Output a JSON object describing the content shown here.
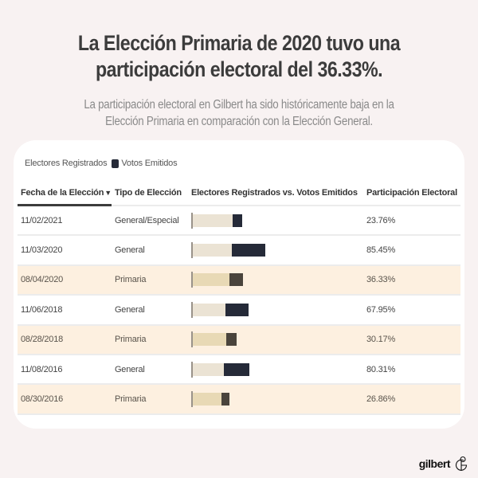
{
  "header": {
    "title_line1": "La Elección Primaria de 2020 tuvo una",
    "title_line2": "participación electoral del 36.33%.",
    "subtitle_line1": "La participación electoral en Gilbert ha sido históricamente baja en la",
    "subtitle_line2": "Elección Primaria en comparación con la Elección General."
  },
  "legend": {
    "registered_label": "Electores Registrados",
    "votes_label": "Votos Emitidos"
  },
  "table": {
    "columns": [
      "Fecha de la Elección",
      "Tipo de Elección",
      "Electores Registrados vs. Votos Emitidos",
      "Participación Electoral"
    ],
    "sort_indicator": "▼"
  },
  "colors": {
    "registered_general": "#ebe3d4",
    "votes_general": "#252a38",
    "registered_primary": "#e8d9b5",
    "votes_primary": "#4a443c",
    "primary_row_bg": "#fdf0e0"
  },
  "chart_data": {
    "type": "table",
    "title": "La Elección Primaria de 2020 tuvo una participación electoral del 36.33%.",
    "legend": [
      "Electores Registrados",
      "Votos Emitidos"
    ],
    "legend_position": "top-left",
    "rows": [
      {
        "date": "11/02/2021",
        "type": "General/Especial",
        "registered_rel": 1.0,
        "turnout_pct": 23.76,
        "turnout_label": "23.76%",
        "highlight": false
      },
      {
        "date": "11/03/2020",
        "type": "General",
        "registered_rel": 0.98,
        "turnout_pct": 85.45,
        "turnout_label": "85.45%",
        "highlight": false
      },
      {
        "date": "08/04/2020",
        "type": "Primaria",
        "registered_rel": 0.92,
        "turnout_pct": 36.33,
        "turnout_label": "36.33%",
        "highlight": true
      },
      {
        "date": "11/06/2018",
        "type": "General",
        "registered_rel": 0.83,
        "turnout_pct": 67.95,
        "turnout_label": "67.95%",
        "highlight": false
      },
      {
        "date": "08/28/2018",
        "type": "Primaria",
        "registered_rel": 0.85,
        "turnout_pct": 30.17,
        "turnout_label": "30.17%",
        "highlight": true
      },
      {
        "date": "11/08/2016",
        "type": "General",
        "registered_rel": 0.79,
        "turnout_pct": 80.31,
        "turnout_label": "80.31%",
        "highlight": false
      },
      {
        "date": "08/30/2016",
        "type": "Primaria",
        "registered_rel": 0.73,
        "turnout_pct": 26.86,
        "turnout_label": "26.86%",
        "highlight": true
      }
    ]
  },
  "footer": {
    "logo_text": "gilbert"
  }
}
